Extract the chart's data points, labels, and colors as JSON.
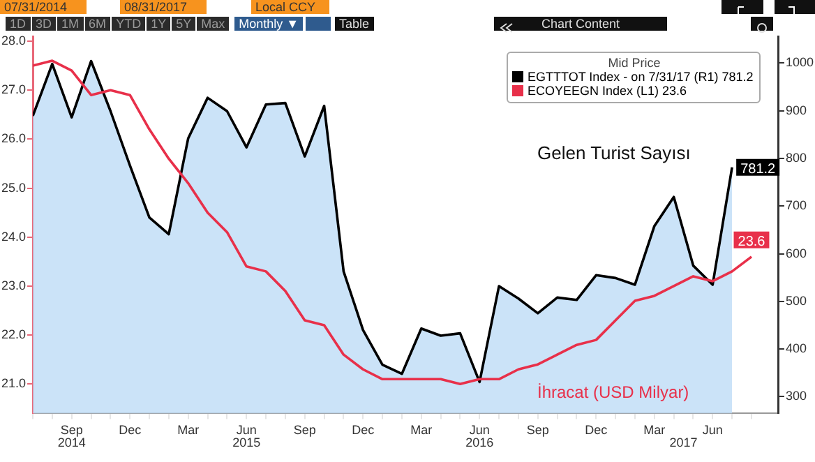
{
  "chart_data": {
    "type": "line",
    "legend": "top right",
    "legend_title": "Mid Price",
    "grid": false,
    "marker": "none",
    "categories": [
      null,
      null,
      "Sep",
      null,
      null,
      "Dec",
      null,
      null,
      "Mar",
      null,
      null,
      "Jun",
      null,
      null,
      "Sep",
      null,
      null,
      "Dec",
      null,
      null,
      "Mar",
      null,
      null,
      "Jun",
      null,
      null,
      "Sep",
      null,
      null,
      "Dec",
      null,
      null,
      "Mar",
      null,
      null,
      "Jun",
      null,
      null
    ],
    "series": [
      {
        "name": "EGTTTOT Index - on 7/31/17 (R1) 781.2",
        "type": "area",
        "axis": "y2",
        "color": "#000000",
        "values": [
          889,
          998,
          886,
          1004,
          899,
          785,
          676,
          641,
          842,
          927,
          899,
          823,
          913,
          916,
          804,
          910,
          563,
          440,
          367,
          348,
          443,
          428,
          433,
          331,
          532,
          506,
          475,
          508,
          503,
          555,
          549,
          535,
          658,
          719,
          575,
          535,
          781.2,
          null
        ],
        "value_labels": [
          null,
          null,
          null,
          null,
          null,
          null,
          null,
          null,
          null,
          null,
          null,
          null,
          null,
          null,
          null,
          null,
          null,
          null,
          null,
          null,
          null,
          null,
          null,
          null,
          null,
          null,
          null,
          null,
          null,
          null,
          null,
          null,
          null,
          null,
          null,
          null,
          "781.2",
          null
        ]
      },
      {
        "name": "ECOYEEGN Index (L1) 23.6",
        "type": "line",
        "axis": "y",
        "color": "#e8304a",
        "values": [
          27.5,
          27.6,
          27.4,
          26.9,
          27.0,
          26.9,
          26.2,
          25.6,
          25.1,
          24.5,
          24.1,
          23.4,
          23.3,
          22.9,
          22.3,
          22.2,
          21.6,
          21.3,
          21.1,
          21.1,
          21.1,
          21.1,
          21.0,
          21.1,
          21.1,
          21.3,
          21.4,
          21.6,
          21.8,
          21.9,
          22.3,
          22.7,
          22.8,
          23.0,
          23.2,
          23.1,
          23.3,
          23.6
        ],
        "value_labels": [
          null,
          null,
          null,
          null,
          null,
          null,
          null,
          null,
          null,
          null,
          null,
          null,
          null,
          null,
          null,
          null,
          null,
          null,
          null,
          null,
          null,
          null,
          null,
          null,
          null,
          null,
          null,
          null,
          null,
          null,
          null,
          null,
          null,
          null,
          null,
          null,
          null,
          "23.6"
        ]
      }
    ],
    "ylim": [
      20.4,
      28.1
    ],
    "yticks": [
      {
        "value": 21,
        "label": "21.0"
      },
      {
        "value": 22,
        "label": "22.0"
      },
      {
        "value": 23,
        "label": "23.0"
      },
      {
        "value": 24,
        "label": "24.0"
      },
      {
        "value": 25,
        "label": "25.0"
      },
      {
        "value": 26,
        "label": "26.0"
      },
      {
        "value": 27,
        "label": "27.0"
      },
      {
        "value": 28,
        "label": "28.0"
      }
    ],
    "y2lim": [
      265,
      1056
    ],
    "y2ticks": [
      300,
      400,
      500,
      600,
      700,
      800,
      900,
      1000
    ],
    "annotations": [
      "07/31/2014",
      "08/31/2017",
      "Local CCY",
      "1D",
      "3D",
      "1M",
      "6M",
      "YTD",
      "1Y",
      "5Y",
      "Max",
      "Monthly ▼",
      "Table",
      "Chart Content",
      "Gelen Turist Sayısı",
      "İhracat (USD Milyar)",
      "2014",
      "2015",
      "2016",
      "2017"
    ]
  }
}
